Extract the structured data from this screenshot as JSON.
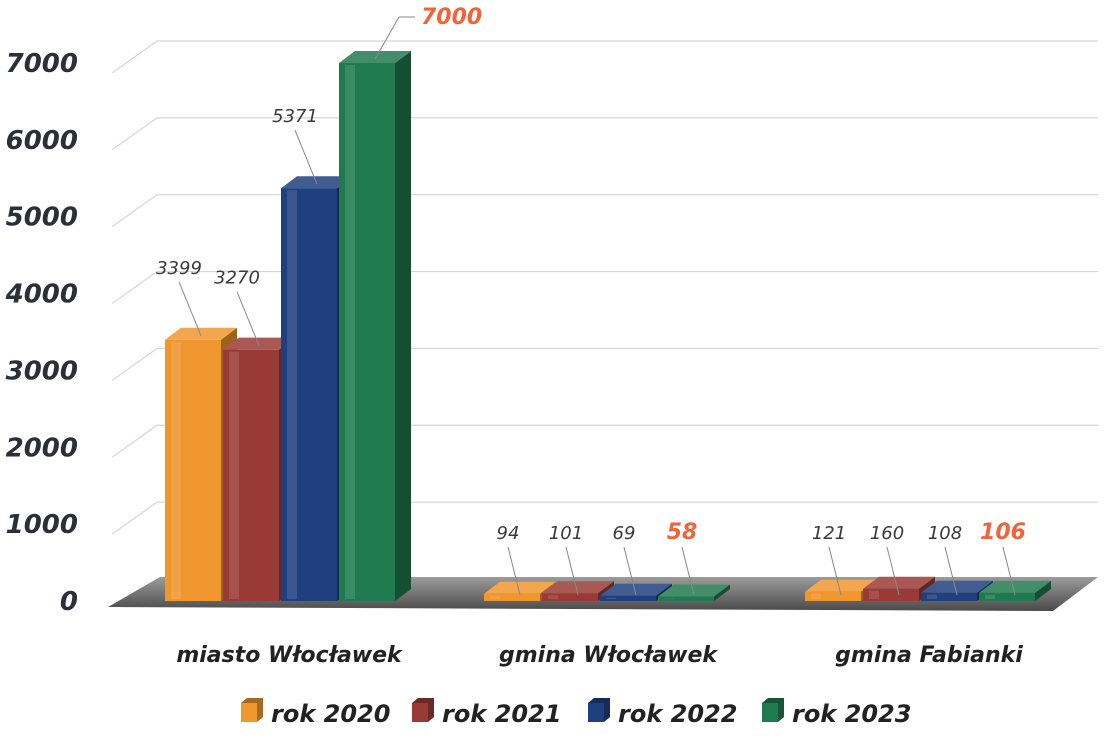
{
  "chart_data": {
    "type": "bar",
    "title": "",
    "xlabel": "",
    "ylabel": "",
    "ylim": [
      0,
      7000
    ],
    "yticks": [
      "0",
      "1000",
      "2000",
      "3000",
      "4000",
      "5000",
      "6000",
      "7000"
    ],
    "grid": true,
    "legend_position": "bottom",
    "categories": [
      "miasto Włocławek",
      "gmina Włocławek",
      "gmina Fabianki"
    ],
    "series": [
      {
        "name": "rok 2020",
        "color": "#f0962e",
        "values": [
          3399,
          94,
          121
        ],
        "labels": [
          "3399",
          "94",
          "121"
        ]
      },
      {
        "name": "rok 2021",
        "color": "#9a3a36",
        "values": [
          3270,
          101,
          160
        ],
        "labels": [
          "3270",
          "101",
          "160"
        ]
      },
      {
        "name": "rok 2022",
        "color": "#1f3f7e",
        "values": [
          5371,
          69,
          108
        ],
        "labels": [
          "5371",
          "69",
          "108"
        ]
      },
      {
        "name": "rok 2023",
        "color": "#1f7a4f",
        "values": [
          7000,
          58,
          106
        ],
        "labels": [
          "7000",
          "58",
          "106"
        ]
      }
    ],
    "highlight_series": "rok 2023",
    "highlight_color": "#f2633b"
  }
}
